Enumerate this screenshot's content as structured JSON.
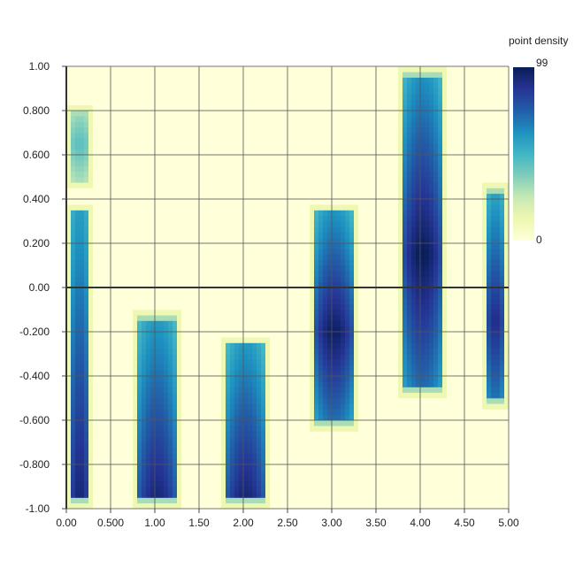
{
  "chart_data": {
    "type": "heatmap",
    "legend": {
      "title": "point density",
      "max_label": "99",
      "min_label": "0",
      "min": 0,
      "max": 99,
      "colors": [
        "#ffffd9",
        "#edf8b1",
        "#c7e9b4",
        "#7fcdbb",
        "#41b6c4",
        "#1d91c0",
        "#225ea8",
        "#253494",
        "#081d58"
      ]
    },
    "x_axis": {
      "range": [
        0,
        5
      ],
      "ticks": [
        {
          "value": 0,
          "label": "0.00"
        },
        {
          "value": 0.5,
          "label": "0.500"
        },
        {
          "value": 1,
          "label": "1.00"
        },
        {
          "value": 1.5,
          "label": "1.50"
        },
        {
          "value": 2,
          "label": "2.00"
        },
        {
          "value": 2.5,
          "label": "2.50"
        },
        {
          "value": 3,
          "label": "3.00"
        },
        {
          "value": 3.5,
          "label": "3.50"
        },
        {
          "value": 4,
          "label": "4.00"
        },
        {
          "value": 4.5,
          "label": "4.50"
        },
        {
          "value": 5,
          "label": "5.00"
        }
      ]
    },
    "y_axis": {
      "range": [
        -1,
        1
      ],
      "ticks": [
        {
          "value": 1,
          "label": "1.00"
        },
        {
          "value": 0.8,
          "label": "0.800"
        },
        {
          "value": 0.6,
          "label": "0.600"
        },
        {
          "value": 0.4,
          "label": "0.400"
        },
        {
          "value": 0.2,
          "label": "0.200"
        },
        {
          "value": 0,
          "label": "0.00"
        },
        {
          "value": -0.2,
          "label": "-0.200"
        },
        {
          "value": -0.4,
          "label": "-0.400"
        },
        {
          "value": -0.6,
          "label": "-0.600"
        },
        {
          "value": -0.8,
          "label": "-0.800"
        },
        {
          "value": -1,
          "label": "-1.00"
        }
      ]
    },
    "grid": true,
    "grid_resolution": {
      "dx": 0.05,
      "dy": 0.025
    },
    "clusters": [
      {
        "x_min": 0.0,
        "x_max": 0.3,
        "y_min": 0.45,
        "y_max": 0.82,
        "peak": 45,
        "peak_y": 0.65
      },
      {
        "x_min": 0.0,
        "x_max": 0.3,
        "y_min": -1.0,
        "y_max": 0.38,
        "peak": 95,
        "peak_y": -1.0
      },
      {
        "x_min": 0.75,
        "x_max": 1.3,
        "y_min": -1.0,
        "y_max": -0.1,
        "peak": 95,
        "peak_y": -1.0
      },
      {
        "x_min": 1.75,
        "x_max": 2.3,
        "y_min": -1.0,
        "y_max": -0.22,
        "peak": 96,
        "peak_y": -1.0
      },
      {
        "x_min": 2.75,
        "x_max": 3.3,
        "y_min": -0.64,
        "y_max": 0.38,
        "peak": 97,
        "peak_y": -0.2
      },
      {
        "x_min": 3.75,
        "x_max": 4.3,
        "y_min": -0.5,
        "y_max": 1.0,
        "peak": 99,
        "peak_y": 0.15
      },
      {
        "x_min": 4.7,
        "x_max": 5.0,
        "y_min": -0.54,
        "y_max": 0.47,
        "peak": 90,
        "peak_y": -0.15
      }
    ]
  }
}
